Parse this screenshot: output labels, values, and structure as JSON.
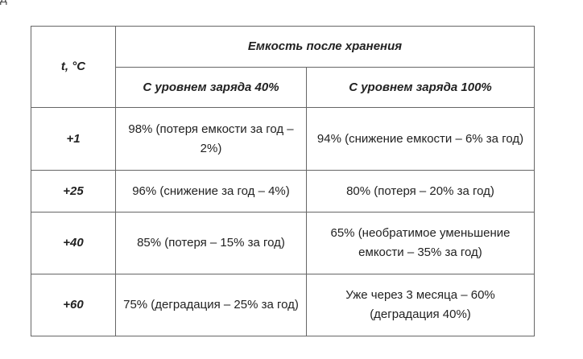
{
  "fragment": "д",
  "table": {
    "header_temp": "t, °C",
    "header_group": "Емкость после хранения",
    "header_col40": "С уровнем заряда 40%",
    "header_col100": "С уровнем заряда 100%",
    "rows": [
      {
        "temp": "+1",
        "c40_line1": "98% (потеря емкости за год –",
        "c40_line2": "2%)",
        "c100_line1": "94% (снижение емкости – 6% за год)",
        "c100_line2": ""
      },
      {
        "temp": "+25",
        "c40_line1": "96% (снижение за год – 4%)",
        "c40_line2": "",
        "c100_line1": "80% (потеря – 20% за год)",
        "c100_line2": ""
      },
      {
        "temp": "+40",
        "c40_line1": "85% (потеря – 15% за год)",
        "c40_line2": "",
        "c100_line1": "65% (необратимое уменьшение",
        "c100_line2": "емкости – 35% за год)"
      },
      {
        "temp": "+60",
        "c40_line1": "75% (деградация – 25% за год)",
        "c40_line2": "",
        "c100_line1": "Уже через 3 месяца – 60%",
        "c100_line2": "(деградация 40%)"
      }
    ]
  }
}
